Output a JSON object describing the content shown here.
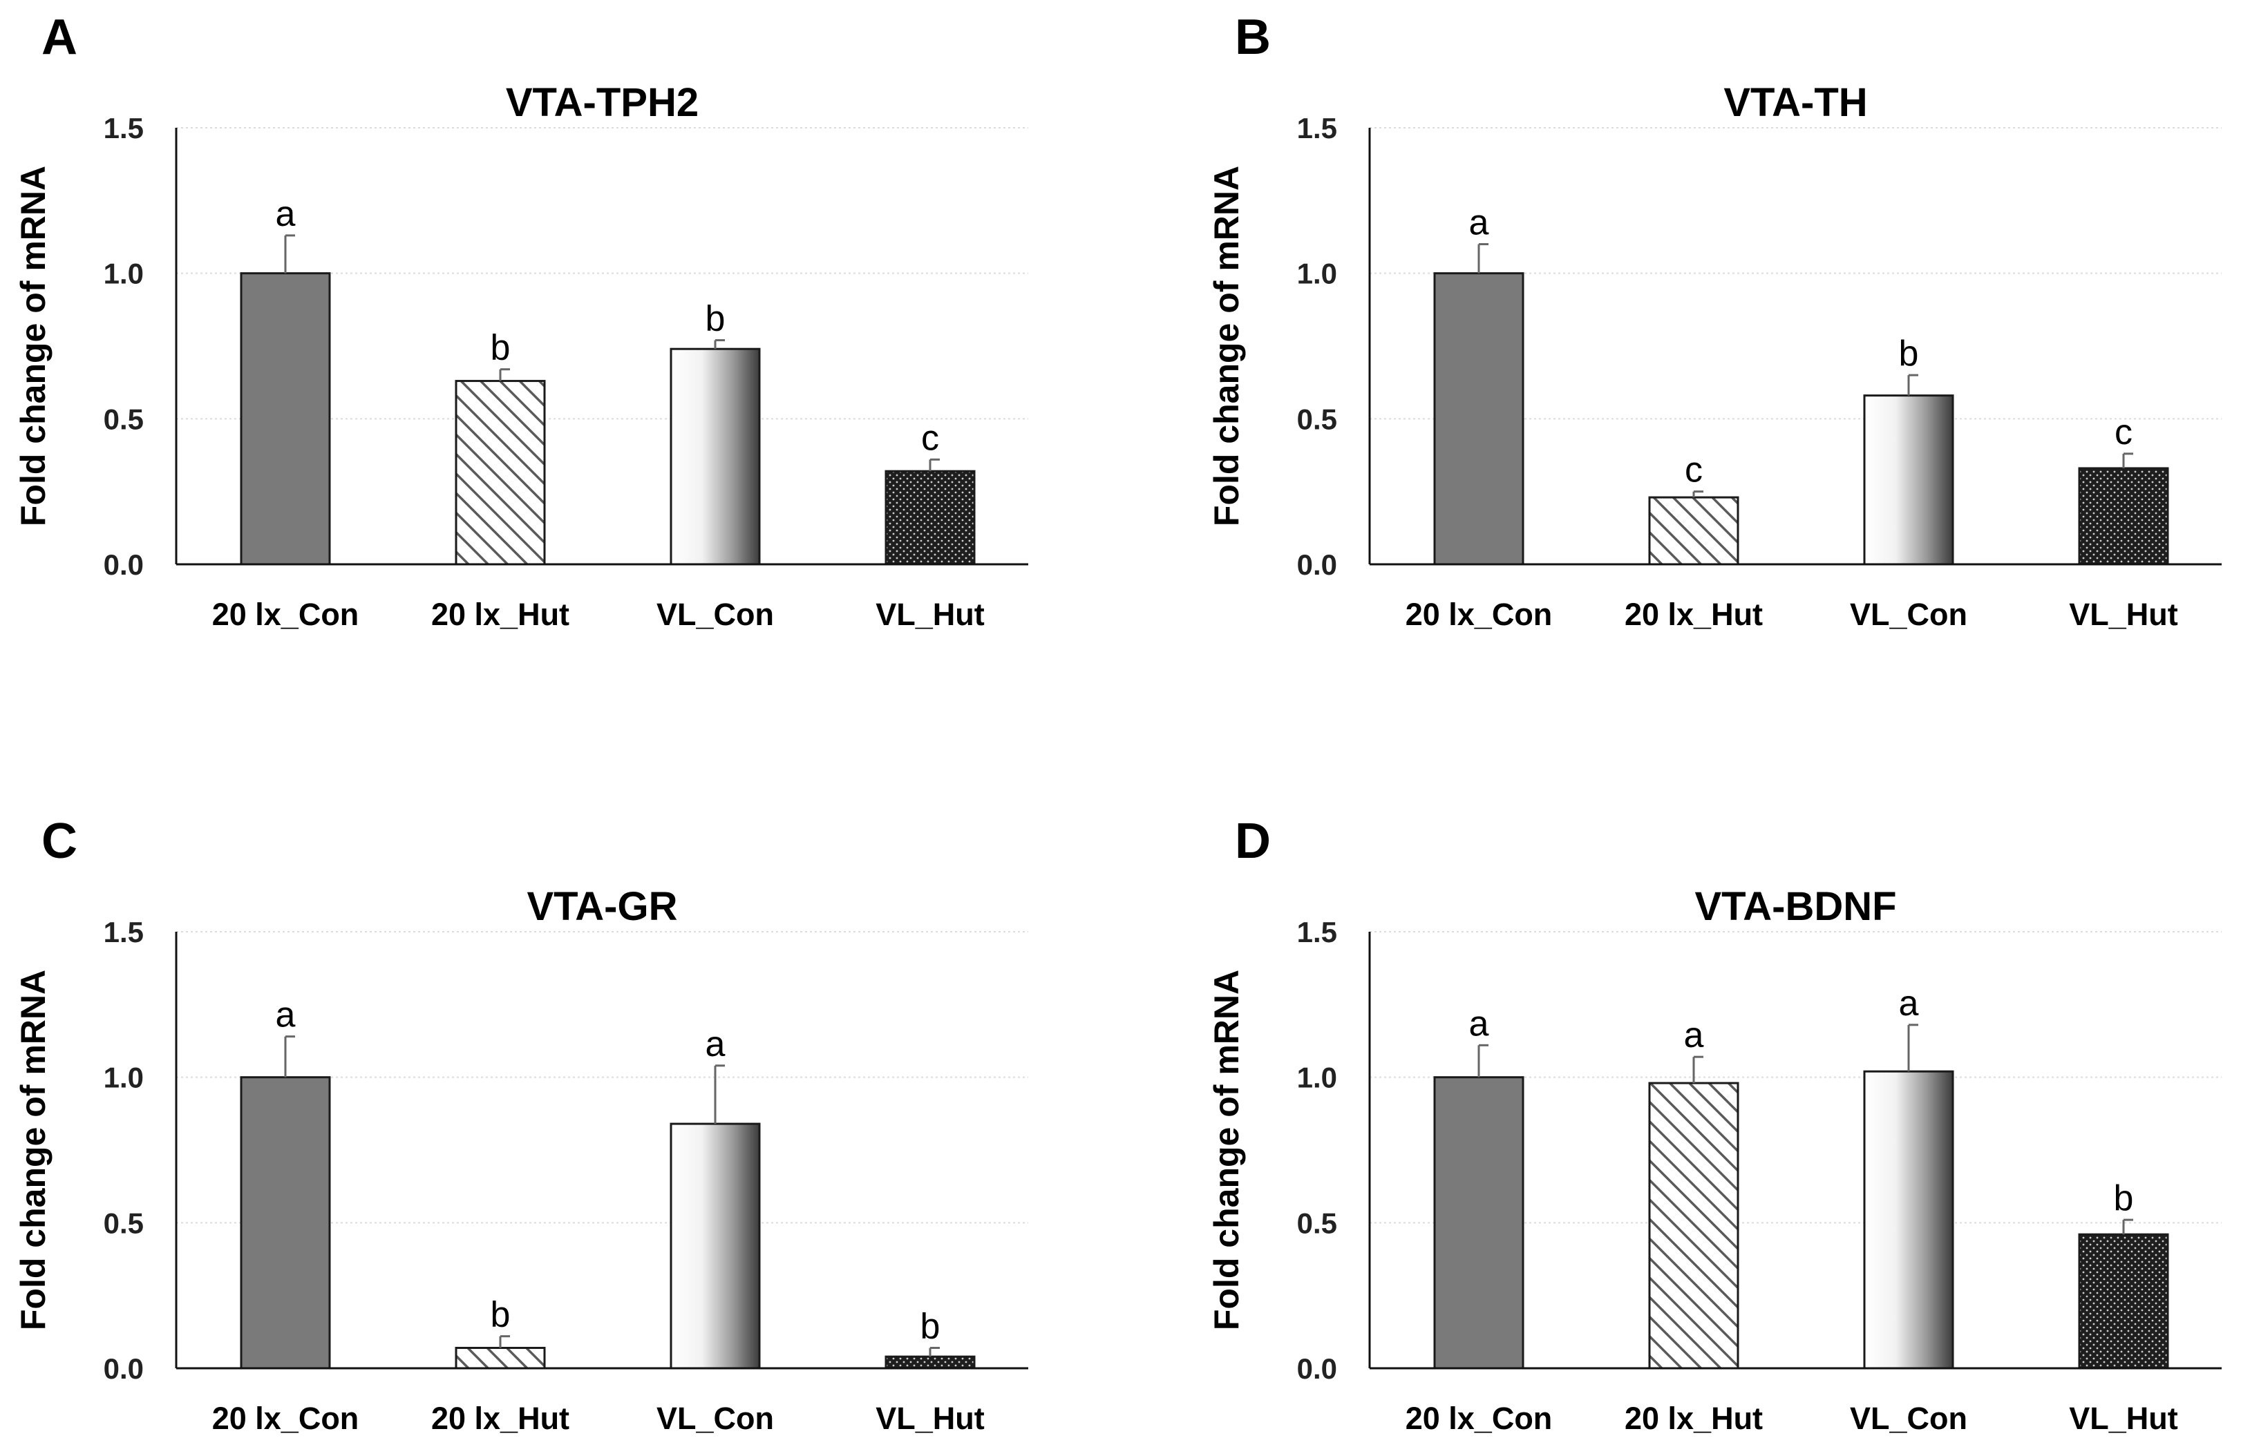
{
  "chart_data": [
    {
      "panel": "A",
      "type": "bar",
      "title": "VTA-TPH2",
      "ylabel": "Fold change of mRNA",
      "xlabel": "",
      "ylim": [
        0,
        1.5
      ],
      "yticks": [
        "0.0",
        "0.5",
        "1.0",
        "1.5"
      ],
      "categories": [
        "20 lx_Con",
        "20 lx_Hut",
        "VL_Con",
        "VL_Hut"
      ],
      "values": [
        1.0,
        0.63,
        0.74,
        0.32
      ],
      "errors": [
        0.13,
        0.04,
        0.03,
        0.04
      ],
      "letters": [
        "a",
        "b",
        "b",
        "c"
      ],
      "grid": true
    },
    {
      "panel": "B",
      "type": "bar",
      "title": "VTA-TH",
      "ylabel": "Fold change of mRNA",
      "xlabel": "",
      "ylim": [
        0,
        1.5
      ],
      "yticks": [
        "0.0",
        "0.5",
        "1.0",
        "1.5"
      ],
      "categories": [
        "20 lx_Con",
        "20 lx_Hut",
        "VL_Con",
        "VL_Hut"
      ],
      "values": [
        1.0,
        0.23,
        0.58,
        0.33
      ],
      "errors": [
        0.1,
        0.02,
        0.07,
        0.05
      ],
      "letters": [
        "a",
        "c",
        "b",
        "c"
      ],
      "grid": true
    },
    {
      "panel": "C",
      "type": "bar",
      "title": "VTA-GR",
      "ylabel": "Fold change of mRNA",
      "xlabel": "",
      "ylim": [
        0,
        1.5
      ],
      "yticks": [
        "0.0",
        "0.5",
        "1.0",
        "1.5"
      ],
      "categories": [
        "20 lx_Con",
        "20 lx_Hut",
        "VL_Con",
        "VL_Hut"
      ],
      "values": [
        1.0,
        0.07,
        0.84,
        0.04
      ],
      "errors": [
        0.14,
        0.04,
        0.2,
        0.03
      ],
      "letters": [
        "a",
        "b",
        "a",
        "b"
      ],
      "grid": true
    },
    {
      "panel": "D",
      "type": "bar",
      "title": "VTA-BDNF",
      "ylabel": "Fold change of mRNA",
      "xlabel": "",
      "ylim": [
        0,
        1.5
      ],
      "yticks": [
        "0.0",
        "0.5",
        "1.0",
        "1.5"
      ],
      "categories": [
        "20 lx_Con",
        "20 lx_Hut",
        "VL_Con",
        "VL_Hut"
      ],
      "values": [
        1.0,
        0.98,
        1.02,
        0.46
      ],
      "errors": [
        0.11,
        0.09,
        0.16,
        0.05
      ],
      "letters": [
        "a",
        "a",
        "a",
        "b"
      ],
      "grid": true
    }
  ],
  "colors": {
    "con_20lx": "#7a7a7a",
    "hut_20lx_hatch": "#5a5a5a",
    "vl_con_gradient_light": "#ffffff",
    "vl_con_gradient_dark": "#3c3c3c",
    "vl_hut_dots": "#1e1e1e",
    "bar_outline": "#1a1a1a",
    "axis": "#111111",
    "grid": "#dcdcdc"
  }
}
